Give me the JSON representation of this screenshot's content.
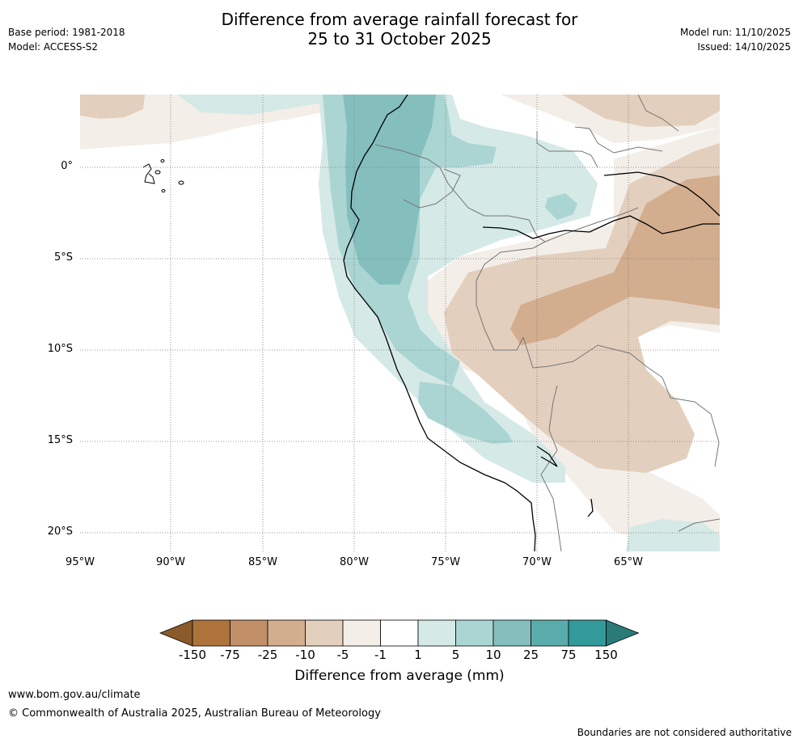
{
  "title_line1": "Difference from average rainfall forecast for",
  "title_line2": "25 to 31 October 2025",
  "base_period": "Base period: 1981-2018",
  "model": "Model: ACCESS-S2",
  "model_run": "Model run: 11/10/2025",
  "issued": "Issued: 14/10/2025",
  "lat_labels": [
    "0°",
    "5°S",
    "10°S",
    "15°S",
    "20°S"
  ],
  "lon_labels": [
    "95°W",
    "90°W",
    "85°W",
    "80°W",
    "75°W",
    "70°W",
    "65°W"
  ],
  "colorbar": {
    "labels": [
      "-150",
      "-75",
      "-25",
      "-10",
      "-5",
      "-1",
      "1",
      "5",
      "10",
      "25",
      "75",
      "150"
    ],
    "colors": [
      "#8a5a2b",
      "#ad733a",
      "#c19068",
      "#d2ad8e",
      "#e3cfbd",
      "#f3eee8",
      "#ffffff",
      "#d5e9e7",
      "#aad5d3",
      "#84bfbe",
      "#5aacab",
      "#34999a",
      "#2a7a79"
    ],
    "title": "Difference from average (mm)"
  },
  "footer": {
    "url": "www.bom.gov.au/climate",
    "copyright": "© Commonwealth of Australia 2025, Australian Bureau of Meteorology",
    "disclaimer": "Boundaries are not considered authoritative"
  }
}
